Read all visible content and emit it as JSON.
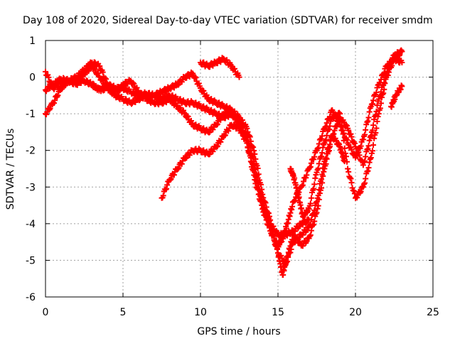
{
  "chart_data": {
    "type": "scatter",
    "title": "Day 108 of 2020, Sidereal Day-to-day VTEC variation (SDTVAR) for receiver smdm",
    "xlabel": "GPS time / hours",
    "ylabel": "SDTVAR / TECUs",
    "xlim": [
      0,
      25
    ],
    "ylim": [
      -6,
      1
    ],
    "xticks": [
      0,
      5,
      10,
      15,
      20,
      25
    ],
    "yticks": [
      -6,
      -5,
      -4,
      -3,
      -2,
      -1,
      0,
      1
    ],
    "grid": true,
    "marker": "+",
    "color": "#ff0000",
    "series": [
      {
        "x": [
          0.0,
          0.5,
          1.0,
          1.5,
          2.0,
          2.5,
          3.0,
          3.3,
          3.7,
          4.0,
          4.5,
          5.0,
          5.5,
          6.0,
          6.5,
          7.0,
          7.5,
          8.0,
          8.5,
          9.0,
          9.5,
          10.0,
          10.5,
          11.0,
          11.5,
          12.0,
          12.5,
          13.0,
          13.5,
          14.0,
          14.5,
          15.0,
          15.3,
          15.6,
          16.0,
          16.5,
          17.0,
          17.5,
          18.0,
          18.5,
          19.0,
          19.5,
          20.0,
          20.5,
          21.0,
          21.5,
          22.0,
          22.5,
          23.0
        ],
        "y": [
          -0.35,
          -0.2,
          -0.05,
          -0.1,
          -0.15,
          -0.1,
          -0.2,
          -0.3,
          -0.35,
          -0.2,
          -0.3,
          -0.3,
          -0.4,
          -0.5,
          -0.45,
          -0.5,
          -0.6,
          -0.5,
          -0.6,
          -0.7,
          -0.7,
          -0.8,
          -0.9,
          -1.0,
          -1.1,
          -1.0,
          -1.2,
          -1.8,
          -2.8,
          -3.6,
          -4.2,
          -4.6,
          -4.4,
          -4.0,
          -3.4,
          -3.0,
          -2.5,
          -2.0,
          -1.4,
          -0.9,
          -1.3,
          -1.8,
          -2.2,
          -1.7,
          -0.8,
          -0.2,
          0.3,
          0.5,
          0.4
        ]
      },
      {
        "x": [
          0.0,
          0.5,
          1.0,
          1.5,
          2.0,
          2.5,
          3.0,
          3.5,
          4.0,
          4.5,
          5.0,
          5.5,
          6.0,
          6.5,
          7.0,
          7.5,
          8.0,
          8.5,
          9.0,
          9.5,
          10.0,
          10.5,
          11.0,
          11.5,
          12.0,
          12.5,
          13.0,
          13.5,
          14.0,
          14.5,
          15.0,
          15.3,
          15.6,
          16.0,
          16.5,
          17.0,
          17.5,
          18.0,
          18.5,
          19.0,
          19.5,
          20.0,
          20.5,
          21.0,
          21.5,
          22.0,
          22.5,
          23.0
        ],
        "y": [
          -1.0,
          -0.7,
          -0.3,
          -0.1,
          0.0,
          0.2,
          0.4,
          0.3,
          -0.2,
          -0.5,
          -0.6,
          -0.7,
          -0.6,
          -0.5,
          -0.5,
          -0.4,
          -0.3,
          -0.2,
          0.0,
          0.1,
          -0.3,
          -0.6,
          -0.7,
          -0.8,
          -0.9,
          -1.1,
          -1.4,
          -2.1,
          -3.2,
          -3.9,
          -4.8,
          -5.4,
          -4.9,
          -4.3,
          -4.6,
          -4.4,
          -3.7,
          -2.5,
          -1.6,
          -1.1,
          -1.4,
          -1.9,
          -2.4,
          -1.6,
          -0.6,
          0.1,
          0.6,
          0.7
        ]
      },
      {
        "x": [
          0.0,
          0.5,
          1.0,
          1.5,
          2.0,
          2.5,
          3.0,
          3.5,
          4.0,
          4.5,
          5.0,
          5.5,
          6.0,
          6.5,
          7.0,
          7.5,
          8.0,
          8.5,
          9.0,
          9.5,
          10.0,
          10.5,
          11.0,
          11.5,
          12.0,
          12.5,
          13.0,
          13.5,
          14.0,
          14.5,
          15.0,
          15.5,
          16.0,
          16.5,
          17.0,
          17.5,
          18.0,
          18.5,
          19.0,
          19.3
        ],
        "y": [
          0.15,
          -0.3,
          -0.15,
          -0.1,
          -0.2,
          0.1,
          0.3,
          0.0,
          -0.3,
          -0.5,
          -0.2,
          -0.1,
          -0.4,
          -0.6,
          -0.7,
          -0.7,
          -0.6,
          -0.8,
          -1.0,
          -1.3,
          -1.4,
          -1.5,
          -1.3,
          -1.0,
          -1.0,
          -1.3,
          -1.6,
          -2.4,
          -3.4,
          -4.1,
          -4.8,
          -5.1,
          -4.5,
          -4.3,
          -4.1,
          -3.4,
          -2.3,
          -1.6,
          -1.9,
          -2.3
        ]
      },
      {
        "x": [
          7.5,
          8.0,
          8.5,
          9.0,
          9.5,
          10.0,
          10.5,
          11.0,
          11.5,
          12.0,
          12.5,
          13.0,
          13.5,
          14.0,
          14.5,
          15.0,
          15.5,
          16.0,
          16.5,
          17.0
        ],
        "y": [
          -3.3,
          -2.8,
          -2.5,
          -2.2,
          -2.0,
          -2.0,
          -2.1,
          -1.9,
          -1.6,
          -1.3,
          -1.4,
          -1.8,
          -2.6,
          -3.5,
          -4.0,
          -4.3,
          -4.3,
          -4.2,
          -4.0,
          -3.9
        ]
      },
      {
        "x": [
          10.0,
          10.5,
          11.0,
          11.5,
          12.0,
          12.5
        ],
        "y": [
          0.4,
          0.3,
          0.4,
          0.5,
          0.3,
          0.0
        ]
      },
      {
        "x": [
          15.8,
          16.0,
          16.3,
          16.6,
          17.0,
          17.5,
          18.0,
          18.5,
          19.0,
          19.5,
          20.0,
          20.5,
          21.0,
          21.5,
          22.0,
          22.5,
          23.0
        ],
        "y": [
          -2.5,
          -2.7,
          -3.2,
          -3.8,
          -3.6,
          -2.6,
          -1.8,
          -1.1,
          -1.0,
          -2.5,
          -3.3,
          -3.0,
          -2.2,
          -1.0,
          0.0,
          0.5,
          0.7
        ]
      },
      {
        "x": [
          22.3,
          22.6,
          23.0
        ],
        "y": [
          -0.8,
          -0.5,
          -0.25
        ]
      }
    ]
  }
}
